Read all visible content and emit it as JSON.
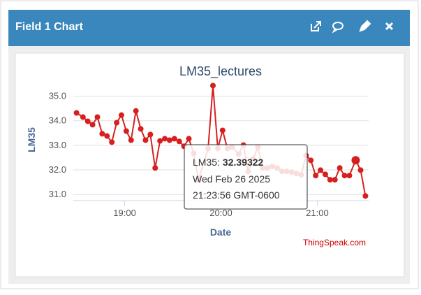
{
  "widget": {
    "title": "Field 1 Chart"
  },
  "chart_data": {
    "type": "line",
    "title": "LM35_lectures",
    "x_label": "Date",
    "y_label": "LM35",
    "credit": "ThingSpeak.com",
    "color": "#d62020",
    "grid": true,
    "x": [
      1110,
      1114,
      1117,
      1120,
      1123,
      1126,
      1129,
      1132,
      1135,
      1138,
      1141,
      1144,
      1147,
      1150,
      1153,
      1156,
      1159,
      1162,
      1165,
      1168,
      1171,
      1174,
      1177,
      1180,
      1183,
      1186,
      1192,
      1195,
      1198,
      1201,
      1204,
      1207,
      1211,
      1214,
      1217,
      1220,
      1223,
      1226,
      1229,
      1232,
      1235,
      1238,
      1241,
      1244,
      1247,
      1250,
      1253,
      1256,
      1259,
      1262,
      1265,
      1268,
      1271,
      1274,
      1277,
      1280,
      1283.93,
      1287,
      1290
    ],
    "values": [
      34.32,
      34.15,
      33.98,
      33.84,
      34.15,
      33.47,
      33.38,
      33.13,
      33.92,
      34.23,
      33.58,
      33.21,
      34.4,
      33.67,
      33.21,
      33.44,
      32.08,
      33.18,
      33.27,
      33.21,
      33.27,
      33.16,
      32.96,
      33.27,
      32.67,
      31.6,
      32.87,
      35.43,
      32.87,
      33.61,
      32.87,
      32.93,
      32.65,
      33.01,
      31.94,
      32.45,
      32.93,
      32.08,
      32.08,
      32.14,
      32.08,
      31.94,
      31.94,
      31.91,
      31.85,
      31.8,
      32.59,
      32.39,
      31.77,
      31.99,
      31.82,
      31.6,
      31.6,
      32.08,
      31.77,
      31.77,
      32.39322,
      31.99,
      30.94
    ],
    "highlight_index": 56,
    "xlim": [
      1108,
      1292
    ],
    "xticks": [
      {
        "value": 1140,
        "label": "19:00"
      },
      {
        "value": 1200,
        "label": "20:00"
      },
      {
        "value": 1260,
        "label": "21:00"
      }
    ],
    "ylim": [
      30.75,
      35.5
    ],
    "yticks": [
      {
        "value": 31,
        "label": "31.0"
      },
      {
        "value": 32,
        "label": "32.0"
      },
      {
        "value": 33,
        "label": "33.0"
      },
      {
        "value": 34,
        "label": "34.0"
      },
      {
        "value": 35,
        "label": "35.0"
      }
    ],
    "tooltip": {
      "series_label": "LM35:",
      "value_label": "32.39322",
      "date": "Wed Feb 26 2025",
      "time": "21:23:56 GMT-0600"
    }
  }
}
